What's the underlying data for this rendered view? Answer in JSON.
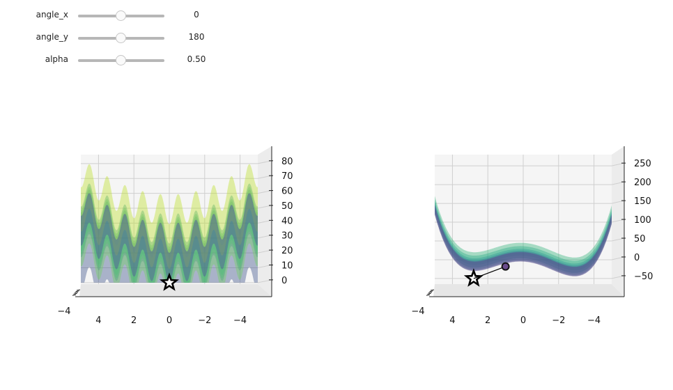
{
  "sliders": [
    {
      "label": "angle_x",
      "value": "0",
      "fraction": 0.5
    },
    {
      "label": "angle_y",
      "value": "180",
      "fraction": 0.5
    },
    {
      "label": "alpha",
      "value": "0.50",
      "fraction": 0.5
    }
  ],
  "colors": {
    "low": "#440154",
    "mid": "#21918c",
    "high": "#fde725",
    "marker": "#000000"
  },
  "chart_data": [
    {
      "type": "surface",
      "surface": "rastrigin",
      "x_ticks": [
        "4",
        "2",
        "0",
        "−2",
        "−4"
      ],
      "x_tick_values": [
        4,
        2,
        0,
        -2,
        -4
      ],
      "z_ticks": [
        "0",
        "10",
        "20",
        "30",
        "40",
        "50",
        "60",
        "70",
        "80"
      ],
      "z_tick_values": [
        0,
        10,
        20,
        30,
        40,
        50,
        60,
        70,
        80
      ],
      "depth_tick_label": "−4",
      "xlim": [
        5,
        -5
      ],
      "zlim": [
        -1,
        86
      ],
      "alpha": 0.5,
      "colormap": "viridis",
      "markers": [
        {
          "kind": "star",
          "x": 0,
          "z": 0
        }
      ]
    },
    {
      "type": "surface",
      "surface": "double-well",
      "x_ticks": [
        "4",
        "2",
        "0",
        "−2",
        "−4"
      ],
      "x_tick_values": [
        4,
        2,
        0,
        -2,
        -4
      ],
      "z_ticks": [
        "−50",
        "0",
        "50",
        "100",
        "150",
        "200",
        "250"
      ],
      "z_tick_values": [
        -50,
        0,
        50,
        100,
        150,
        200,
        250
      ],
      "depth_tick_label": "−4",
      "xlim": [
        5,
        -5
      ],
      "zlim": [
        -65,
        280
      ],
      "alpha": 0.5,
      "colormap": "viridis",
      "markers": [
        {
          "kind": "star",
          "x": 2.8,
          "z": -50
        },
        {
          "kind": "circle",
          "x": 1.0,
          "z": -18
        }
      ]
    }
  ]
}
